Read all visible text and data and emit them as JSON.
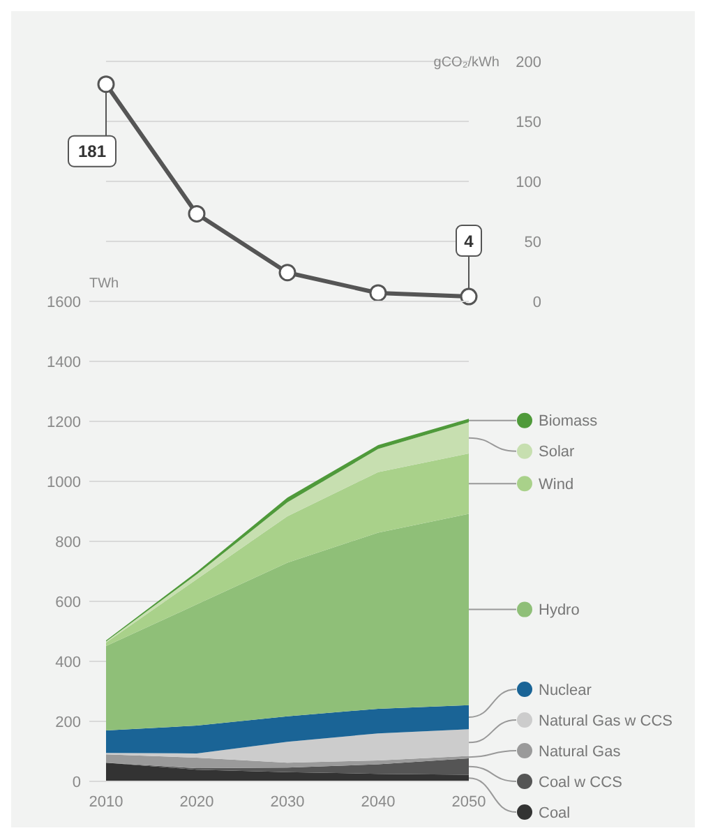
{
  "chart_data": [
    {
      "type": "line",
      "ylabel": "gCO₂/kWh",
      "x": [
        2010,
        2020,
        2030,
        2040,
        2050
      ],
      "xlim": [
        2010,
        2050
      ],
      "ylim": [
        0,
        200
      ],
      "yticks": [
        0,
        50,
        100,
        150,
        200
      ],
      "grid": "y",
      "tick_labels": "y",
      "marker": "circle",
      "series": [
        {
          "color": "#555555",
          "values": [
            181,
            73,
            24,
            7,
            4
          ]
        }
      ],
      "annotations": [
        {
          "text": "181",
          "x": 2010,
          "y": 181
        },
        {
          "text": "4",
          "x": 2050,
          "y": 4
        }
      ]
    },
    {
      "type": "area",
      "stacked": true,
      "ylabel": "TWh",
      "x": [
        2010,
        2020,
        2030,
        2040,
        2050
      ],
      "xlim": [
        2010,
        2050
      ],
      "xticks": [
        2010,
        2020,
        2030,
        2040,
        2050
      ],
      "ylim": [
        0,
        1600
      ],
      "yticks": [
        0,
        200,
        400,
        600,
        800,
        1000,
        1200,
        1400,
        1600
      ],
      "grid": "y",
      "legend": "right",
      "series": [
        {
          "name": "Coal",
          "color": "#333333",
          "values": [
            62,
            39,
            31,
            25,
            22
          ]
        },
        {
          "name": "Coal w CCS",
          "color": "#555555",
          "values": [
            0,
            5,
            15,
            32,
            55
          ]
        },
        {
          "name": "Natural Gas",
          "color": "#9a9a9a",
          "values": [
            28,
            35,
            16,
            13,
            8
          ]
        },
        {
          "name": "Natural Gas w CCS",
          "color": "#cccccc",
          "values": [
            5,
            14,
            70,
            90,
            89
          ]
        },
        {
          "name": "Nuclear",
          "color": "#1a6496",
          "values": [
            75,
            93,
            85,
            82,
            80
          ]
        },
        {
          "name": "Hydro",
          "color": "#8fbf78",
          "values": [
            281,
            404,
            512,
            587,
            638
          ]
        },
        {
          "name": "Wind",
          "color": "#a9d18a",
          "values": [
            12,
            84,
            155,
            202,
            201
          ]
        },
        {
          "name": "Solar",
          "color": "#c7dfb0",
          "values": [
            3,
            16,
            46,
            77,
            104
          ]
        },
        {
          "name": "Biomass",
          "color": "#4f9a3a",
          "values": [
            4,
            8,
            16,
            13,
            12
          ]
        }
      ]
    }
  ]
}
